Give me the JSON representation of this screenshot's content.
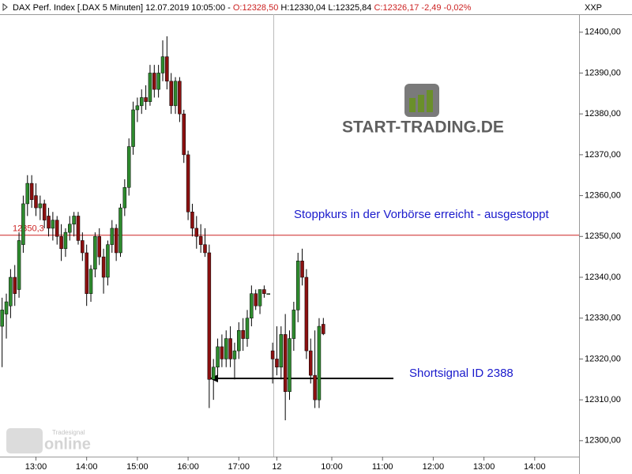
{
  "chart_data": {
    "type": "candlestick",
    "header": {
      "instrument": "DAX Perf. Index [.DAX 5 Minuten] 12.07.2019 10:05:00 -",
      "open": "O:12328,50",
      "high": "H:12330,04",
      "low": "L:12325,84",
      "close": "C:12326,17 -2,49 -0,02%"
    },
    "axis_label": "XXP",
    "annotations": [
      "Stoppkurs in der Vorbörse erreicht - ausgestoppt",
      "Shortsignal ID 2388"
    ],
    "logos": [
      "START-TRADING.DE",
      "Tradesignal",
      "online"
    ],
    "hline": {
      "value": 12350.3,
      "label": "12350,3",
      "color": "#cc2222"
    },
    "up_color": "#2e8b2e",
    "down_color": "#8b1010",
    "ylim": [
      12296.1,
      12404.4
    ],
    "yticks": [
      {
        "value": 12300,
        "label": "12300,00"
      },
      {
        "value": 12310,
        "label": "12310,00"
      },
      {
        "value": 12320,
        "label": "12320,00"
      },
      {
        "value": 12330,
        "label": "12330,00"
      },
      {
        "value": 12340,
        "label": "12340,00"
      },
      {
        "value": 12350,
        "label": "12350,00"
      },
      {
        "value": 12360,
        "label": "12360,00"
      },
      {
        "value": 12370,
        "label": "12370,00"
      },
      {
        "value": 12380,
        "label": "12380,00"
      },
      {
        "value": 12390,
        "label": "12390,00"
      },
      {
        "value": 12400,
        "label": "12400,00"
      }
    ],
    "categories": [
      null,
      null,
      null,
      null,
      null,
      null,
      null,
      null,
      "13:00",
      null,
      null,
      null,
      null,
      null,
      null,
      null,
      null,
      null,
      null,
      null,
      "14:00",
      null,
      null,
      null,
      null,
      null,
      null,
      null,
      null,
      null,
      null,
      null,
      "15:00",
      null,
      null,
      null,
      null,
      null,
      null,
      null,
      null,
      null,
      null,
      null,
      "16:00",
      null,
      null,
      null,
      null,
      null,
      null,
      null,
      null,
      null,
      null,
      null,
      "17:00",
      null,
      null,
      null,
      null,
      null,
      null,
      null,
      null,
      "12",
      null,
      null,
      null,
      null,
      null,
      null,
      null,
      null,
      null,
      null,
      null,
      null,
      "10:00",
      null,
      null,
      null,
      null,
      null,
      null,
      null,
      null,
      null,
      null,
      null,
      "11:00",
      null,
      null,
      null,
      null,
      null,
      null,
      null,
      null,
      null,
      null,
      null,
      "12:00",
      null,
      null,
      null,
      null,
      null,
      null,
      null,
      null,
      null,
      null,
      null,
      "13:00",
      null,
      null,
      null,
      null,
      null,
      null,
      null,
      null,
      null,
      null,
      null,
      "14:00",
      null,
      null,
      null,
      null,
      null,
      null,
      null,
      null,
      null,
      null
    ],
    "open": [
      12328,
      12331,
      12333,
      12340,
      12337,
      12348,
      12358,
      12363,
      12360,
      12357,
      12358,
      12355,
      12352,
      12354,
      12350,
      12347,
      12351,
      12353,
      12355,
      12349,
      12346,
      12336,
      12342,
      12350,
      12345,
      12340,
      12348,
      12352,
      12346,
      12357,
      12362,
      12372,
      12381,
      12382,
      12384,
      12383,
      12390,
      12386,
      12390,
      12394,
      12388,
      12382,
      12388,
      12380,
      12370,
      12356,
      12352,
      12350,
      12348,
      12346,
      12315,
      12318,
      12323,
      12320,
      12325,
      12320,
      12322,
      12327,
      12325,
      12330,
      12336,
      12333,
      12337,
      12336,
      12322,
      12320,
      12318,
      12326,
      12312,
      12325,
      12332,
      12344,
      12340,
      12322,
      12316,
      12310,
      12328.5,
      null,
      null,
      null,
      null,
      null,
      null,
      null,
      null,
      null,
      null,
      null,
      null,
      null,
      null,
      null,
      null,
      null,
      null,
      null,
      null,
      null,
      null,
      null,
      null,
      null,
      null,
      null,
      null,
      null,
      null,
      null,
      null,
      null,
      null,
      null,
      null,
      null,
      null,
      null,
      null,
      null,
      null,
      null,
      null,
      null,
      null,
      null,
      null,
      null,
      null,
      null,
      null,
      null,
      null,
      null,
      null,
      null,
      null,
      null,
      null
    ],
    "high": [
      12335,
      12336,
      12342,
      12343,
      12351,
      12360,
      12365,
      12365,
      12363,
      12360,
      12359,
      12357,
      12356,
      12355,
      12353,
      12352,
      12355,
      12356,
      12356,
      12351,
      12348,
      12343,
      12351,
      12352,
      12347,
      12349,
      12354,
      12353,
      12358,
      12364,
      12374,
      12383,
      12384,
      12386,
      12387,
      12392,
      12392,
      12392,
      12398,
      12399,
      12390,
      12389,
      12389,
      12381,
      12371,
      12358,
      12355,
      12353,
      12352,
      12348,
      12320,
      12325,
      12326,
      12327,
      12328,
      12324,
      12329,
      12330,
      12332,
      12338,
      12337,
      12337,
      12338,
      12336,
      12324,
      12328,
      12328,
      12331,
      12327,
      12334,
      12346,
      12347,
      12342,
      12325,
      12327,
      12330,
      12330.04,
      null,
      null,
      null,
      null,
      null,
      null,
      null,
      null,
      null,
      null,
      null,
      null,
      null,
      null,
      null,
      null,
      null,
      null,
      null,
      null,
      null,
      null,
      null,
      null,
      null,
      null,
      null,
      null,
      null,
      null,
      null,
      null,
      null,
      null,
      null,
      null,
      null,
      null,
      null,
      null,
      null,
      null,
      null,
      null,
      null,
      null,
      null,
      null,
      null,
      null,
      null,
      null,
      null,
      null,
      null,
      null,
      null,
      null,
      null,
      null
    ],
    "low": [
      12318,
      12325,
      12330,
      12333,
      12335,
      12346,
      12355,
      12357,
      12355,
      12354,
      12352,
      12350,
      12349,
      12348,
      12344,
      12345,
      12349,
      12350,
      12348,
      12344,
      12333,
      12334,
      12340,
      12343,
      12336,
      12338,
      12346,
      12344,
      12345,
      12355,
      12360,
      12370,
      12378,
      12380,
      12381,
      12382,
      12384,
      12384,
      12388,
      12386,
      12380,
      12380,
      12378,
      12368,
      12354,
      12350,
      12347,
      12346,
      12345,
      12308,
      12310,
      12315,
      12318,
      12318,
      12318,
      12315,
      12320,
      12322,
      12323,
      12328,
      12332,
      12331,
      12335,
      12336,
      12314,
      12316,
      12315,
      12305,
      12310,
      12322,
      12329,
      12338,
      12320,
      12314,
      12308,
      12308,
      12325.84,
      null,
      null,
      null,
      null,
      null,
      null,
      null,
      null,
      null,
      null,
      null,
      null,
      null,
      null,
      null,
      null,
      null,
      null,
      null,
      null,
      null,
      null,
      null,
      null,
      null,
      null,
      null,
      null,
      null,
      null,
      null,
      null,
      null,
      null,
      null,
      null,
      null,
      null,
      null,
      null,
      null,
      null,
      null,
      null,
      null,
      null,
      null,
      null,
      null,
      null,
      null,
      null,
      null,
      null,
      null,
      null,
      null,
      null,
      null,
      null
    ],
    "close": [
      12332,
      12334,
      12340,
      12336,
      12349,
      12358,
      12363,
      12359,
      12357,
      12358,
      12354,
      12352,
      12354,
      12350,
      12347,
      12351,
      12353,
      12355,
      12349,
      12346,
      12336,
      12342,
      12350,
      12345,
      12340,
      12348,
      12352,
      12346,
      12357,
      12362,
      12372,
      12381,
      12382,
      12384,
      12383,
      12390,
      12386,
      12390,
      12394,
      12388,
      12382,
      12388,
      12380,
      12370,
      12356,
      12352,
      12350,
      12348,
      12346,
      12315,
      12318,
      12323,
      12320,
      12325,
      12320,
      12322,
      12327,
      12325,
      12330,
      12336,
      12333,
      12337,
      12336,
      12336,
      12320,
      12318,
      12326,
      12312,
      12325,
      12332,
      12344,
      12340,
      12322,
      12316,
      12310,
      12328,
      12326.17,
      null,
      null,
      null,
      null,
      null,
      null,
      null,
      null,
      null,
      null,
      null,
      null,
      null,
      null,
      null,
      null,
      null,
      null,
      null,
      null,
      null,
      null,
      null,
      null,
      null,
      null,
      null,
      null,
      null,
      null,
      null,
      null,
      null,
      null,
      null,
      null,
      null,
      null,
      null,
      null,
      null,
      null,
      null,
      null,
      null,
      null,
      null,
      null,
      null,
      null,
      null,
      null,
      null,
      null,
      null,
      null,
      null,
      null,
      null,
      null
    ]
  }
}
